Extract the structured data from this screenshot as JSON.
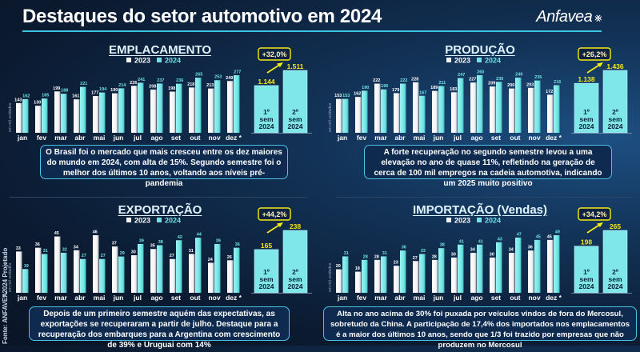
{
  "header": {
    "title": "Destaques do setor automotivo em 2024",
    "logo": "Anfavea"
  },
  "side": {
    "projected": "* 2024 Projetado",
    "source": "Fonte: ANFAVEA"
  },
  "colors": {
    "y2023": "#f2f2f2",
    "y2024": "#6fe3e3",
    "semester_value": "#f5ea14",
    "change_box": "#f5ea14",
    "note_border": "#4fc3e6"
  },
  "chart_data": [
    {
      "type": "bar",
      "title": "EMPLACAMENTO",
      "ylabel": "em mil unidades",
      "categories": [
        "jan",
        "fev",
        "mar",
        "abr",
        "mai",
        "jun",
        "jul",
        "ago",
        "set",
        "out",
        "nov",
        "dez *"
      ],
      "series": [
        {
          "name": "2023",
          "values": [
            143,
            130,
            199,
            161,
            177,
            190,
            226,
            208,
            198,
            218,
            213,
            249
          ]
        },
        {
          "name": "2024",
          "values": [
            162,
            165,
            188,
            221,
            194,
            214,
            241,
            237,
            236,
            265,
            253,
            277
          ]
        }
      ],
      "semesters": {
        "categories": [
          "1º sem 2024",
          "2º sem 2024"
        ],
        "labels": [
          [
            "1º",
            "sem",
            "2024"
          ],
          [
            "2º",
            "sem",
            "2024"
          ]
        ],
        "values": [
          1144,
          1511
        ],
        "value_labels": [
          "1.144",
          "1.511"
        ]
      },
      "change": "+32,0%",
      "note": "O Brasil foi o mercado que mais cresceu entre os dez maiores do mundo em 2024, com alta de 15%. Segundo semestre foi o melhor dos últimos 10 anos, voltando aos níveis pré-pandemia"
    },
    {
      "type": "bar",
      "title": "PRODUÇÃO",
      "ylabel": "em mil unidades",
      "categories": [
        "jan",
        "fev",
        "mar",
        "abr",
        "mai",
        "jun",
        "jul",
        "ago",
        "set",
        "out",
        "nov",
        "dez *"
      ],
      "series": [
        {
          "name": "2023",
          "values": [
            153,
            162,
            222,
            179,
            228,
            189,
            183,
            227,
            209,
            200,
            203,
            172
          ]
        },
        {
          "name": "2024",
          "values": [
            153,
            190,
            196,
            222,
            167,
            211,
            247,
            260,
            230,
            249,
            236,
            215
          ]
        }
      ],
      "semesters": {
        "categories": [
          "1º sem 2024",
          "2º sem 2024"
        ],
        "labels": [
          [
            "1º",
            "sem",
            "2024"
          ],
          [
            "2º",
            "sem",
            "2024"
          ]
        ],
        "values": [
          1138,
          1436
        ],
        "value_labels": [
          "1.138",
          "1.436"
        ]
      },
      "change": "+26,2%",
      "note": "A forte recuperação no segundo semestre levou a uma elevação no ano de quase 11%, refletindo na geração de cerca de 100 mil empregos na cadeia automotiva, indicando um 2025 muito positivo"
    },
    {
      "type": "bar",
      "title": "EXPORTAÇÃO",
      "ylabel": "em mil unidades",
      "categories": [
        "jan",
        "fev",
        "mar",
        "abr",
        "mai",
        "jun",
        "jul",
        "ago",
        "set",
        "out",
        "nov",
        "dez *"
      ],
      "series": [
        {
          "name": "2023",
          "values": [
            33,
            36,
            45,
            34,
            46,
            37,
            30,
            35,
            27,
            31,
            24,
            26
          ]
        },
        {
          "name": "2024",
          "values": [
            19,
            31,
            32,
            27,
            27,
            29,
            39,
            38,
            42,
            44,
            39,
            36
          ]
        }
      ],
      "semesters": {
        "categories": [
          "1º sem 2024",
          "2º sem 2024"
        ],
        "labels": [
          [
            "1º",
            "sem",
            "2024"
          ],
          [
            "2º",
            "sem",
            "2024"
          ]
        ],
        "values": [
          165,
          238
        ],
        "value_labels": [
          "165",
          "238"
        ]
      },
      "change": "+44,2%",
      "note": "Depois de um primeiro semestre aquém das expectativas, as exportações se recuperaram a partir de julho. Destaque para a recuperação dos embarques para a Argentina com crescimento de 39% e Uruguai com 14%"
    },
    {
      "type": "bar",
      "title": "IMPORTAÇÃO (Vendas)",
      "ylabel": "em mil unidades",
      "categories": [
        "jan",
        "fev",
        "mar",
        "abr",
        "mai",
        "jun",
        "jul",
        "ago",
        "set",
        "out",
        "nov",
        "dez *"
      ],
      "series": [
        {
          "name": "2023",
          "values": [
            20,
            18,
            28,
            23,
            27,
            28,
            30,
            34,
            30,
            34,
            36,
            45
          ]
        },
        {
          "name": "2024",
          "values": [
            31,
            28,
            31,
            36,
            33,
            38,
            41,
            41,
            43,
            47,
            45,
            49
          ]
        }
      ],
      "semesters": {
        "categories": [
          "1º sem 2024",
          "2º sem 2024"
        ],
        "labels": [
          [
            "1º",
            "sem",
            "2024"
          ],
          [
            "2º",
            "sem",
            "2024"
          ]
        ],
        "values": [
          198,
          265
        ],
        "value_labels": [
          "198",
          "265"
        ]
      },
      "change": "+34,2%",
      "note": "Alta no ano acima de 30% foi puxada por veículos vindos de fora do Mercosul, sobretudo da China. A participação de 17,4% dos importados nos emplacamentos é a maior dos últimos 10 anos, sendo que 1/3 foi trazido por empresas que não produzem no Mercosul"
    }
  ]
}
